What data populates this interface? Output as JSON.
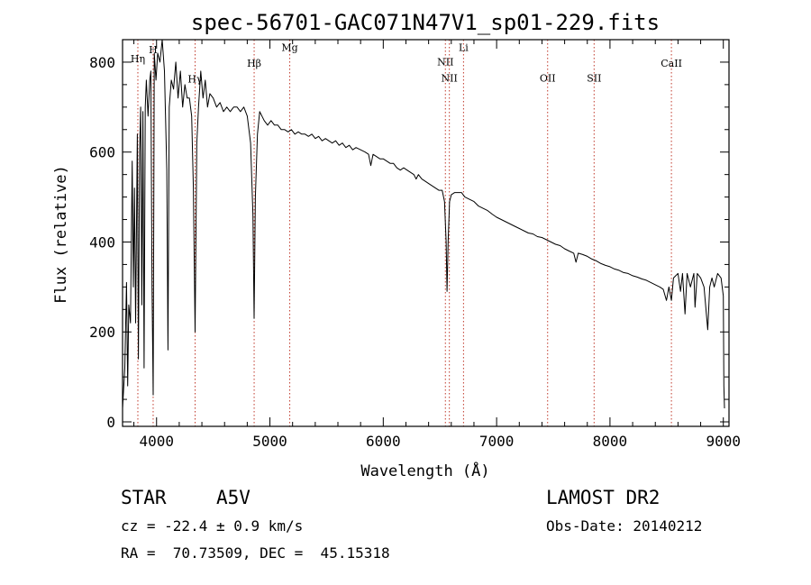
{
  "chart_data": {
    "type": "line",
    "title": "spec-56701-GAC071N47V1_sp01-229.fits",
    "xlabel": "Wavelength (Å)",
    "ylabel": "Flux (relative)",
    "xlim": [
      3700,
      9050
    ],
    "ylim": [
      -10,
      850
    ],
    "xticks": [
      4000,
      5000,
      6000,
      7000,
      8000,
      9000
    ],
    "yticks": [
      0,
      200,
      400,
      600,
      800
    ],
    "grid": false,
    "series": [
      {
        "points": [
          [
            3700,
            30
          ],
          [
            3720,
            120
          ],
          [
            3735,
            310
          ],
          [
            3745,
            80
          ],
          [
            3755,
            260
          ],
          [
            3770,
            220
          ],
          [
            3785,
            580
          ],
          [
            3795,
            300
          ],
          [
            3805,
            520
          ],
          [
            3815,
            220
          ],
          [
            3830,
            640
          ],
          [
            3840,
            140
          ],
          [
            3850,
            600
          ],
          [
            3860,
            700
          ],
          [
            3870,
            260
          ],
          [
            3880,
            690
          ],
          [
            3890,
            120
          ],
          [
            3900,
            700
          ],
          [
            3910,
            760
          ],
          [
            3925,
            680
          ],
          [
            3940,
            760
          ],
          [
            3950,
            780
          ],
          [
            3960,
            300
          ],
          [
            3970,
            60
          ],
          [
            3980,
            820
          ],
          [
            3995,
            760
          ],
          [
            4010,
            820
          ],
          [
            4030,
            800
          ],
          [
            4050,
            850
          ],
          [
            4070,
            780
          ],
          [
            4090,
            560
          ],
          [
            4101,
            160
          ],
          [
            4112,
            700
          ],
          [
            4130,
            760
          ],
          [
            4150,
            740
          ],
          [
            4170,
            800
          ],
          [
            4190,
            720
          ],
          [
            4210,
            780
          ],
          [
            4230,
            700
          ],
          [
            4250,
            750
          ],
          [
            4270,
            720
          ],
          [
            4290,
            720
          ],
          [
            4310,
            680
          ],
          [
            4325,
            520
          ],
          [
            4340,
            200
          ],
          [
            4355,
            620
          ],
          [
            4370,
            700
          ],
          [
            4390,
            780
          ],
          [
            4410,
            720
          ],
          [
            4430,
            760
          ],
          [
            4450,
            700
          ],
          [
            4470,
            730
          ],
          [
            4500,
            720
          ],
          [
            4530,
            700
          ],
          [
            4560,
            710
          ],
          [
            4590,
            690
          ],
          [
            4620,
            700
          ],
          [
            4650,
            690
          ],
          [
            4680,
            700
          ],
          [
            4710,
            700
          ],
          [
            4740,
            690
          ],
          [
            4770,
            700
          ],
          [
            4800,
            680
          ],
          [
            4830,
            620
          ],
          [
            4850,
            460
          ],
          [
            4861,
            230
          ],
          [
            4872,
            500
          ],
          [
            4890,
            640
          ],
          [
            4910,
            690
          ],
          [
            4930,
            680
          ],
          [
            4950,
            670
          ],
          [
            4980,
            660
          ],
          [
            5010,
            670
          ],
          [
            5040,
            660
          ],
          [
            5070,
            660
          ],
          [
            5100,
            650
          ],
          [
            5130,
            650
          ],
          [
            5160,
            645
          ],
          [
            5190,
            650
          ],
          [
            5220,
            640
          ],
          [
            5250,
            645
          ],
          [
            5280,
            640
          ],
          [
            5310,
            640
          ],
          [
            5340,
            635
          ],
          [
            5370,
            640
          ],
          [
            5400,
            630
          ],
          [
            5430,
            635
          ],
          [
            5460,
            625
          ],
          [
            5490,
            630
          ],
          [
            5520,
            625
          ],
          [
            5550,
            620
          ],
          [
            5580,
            625
          ],
          [
            5610,
            615
          ],
          [
            5640,
            620
          ],
          [
            5670,
            610
          ],
          [
            5700,
            615
          ],
          [
            5730,
            605
          ],
          [
            5760,
            610
          ],
          [
            5800,
            605
          ],
          [
            5840,
            600
          ],
          [
            5870,
            595
          ],
          [
            5890,
            570
          ],
          [
            5910,
            595
          ],
          [
            5940,
            590
          ],
          [
            5970,
            585
          ],
          [
            6000,
            585
          ],
          [
            6030,
            580
          ],
          [
            6060,
            575
          ],
          [
            6090,
            575
          ],
          [
            6120,
            565
          ],
          [
            6150,
            560
          ],
          [
            6180,
            565
          ],
          [
            6210,
            560
          ],
          [
            6240,
            555
          ],
          [
            6270,
            550
          ],
          [
            6290,
            540
          ],
          [
            6310,
            550
          ],
          [
            6340,
            540
          ],
          [
            6370,
            535
          ],
          [
            6400,
            530
          ],
          [
            6430,
            525
          ],
          [
            6460,
            520
          ],
          [
            6490,
            515
          ],
          [
            6520,
            515
          ],
          [
            6540,
            490
          ],
          [
            6555,
            400
          ],
          [
            6563,
            290
          ],
          [
            6572,
            400
          ],
          [
            6585,
            490
          ],
          [
            6600,
            505
          ],
          [
            6630,
            510
          ],
          [
            6660,
            510
          ],
          [
            6690,
            510
          ],
          [
            6720,
            500
          ],
          [
            6760,
            495
          ],
          [
            6800,
            490
          ],
          [
            6840,
            480
          ],
          [
            6880,
            475
          ],
          [
            6920,
            470
          ],
          [
            6960,
            462
          ],
          [
            7000,
            455
          ],
          [
            7040,
            450
          ],
          [
            7080,
            445
          ],
          [
            7120,
            440
          ],
          [
            7160,
            435
          ],
          [
            7200,
            430
          ],
          [
            7240,
            425
          ],
          [
            7280,
            420
          ],
          [
            7320,
            418
          ],
          [
            7360,
            412
          ],
          [
            7400,
            410
          ],
          [
            7440,
            405
          ],
          [
            7480,
            400
          ],
          [
            7520,
            395
          ],
          [
            7560,
            392
          ],
          [
            7600,
            385
          ],
          [
            7640,
            380
          ],
          [
            7680,
            375
          ],
          [
            7700,
            355
          ],
          [
            7720,
            375
          ],
          [
            7760,
            372
          ],
          [
            7800,
            368
          ],
          [
            7840,
            362
          ],
          [
            7880,
            358
          ],
          [
            7920,
            352
          ],
          [
            7960,
            348
          ],
          [
            8000,
            345
          ],
          [
            8040,
            340
          ],
          [
            8080,
            337
          ],
          [
            8120,
            332
          ],
          [
            8160,
            330
          ],
          [
            8200,
            325
          ],
          [
            8240,
            322
          ],
          [
            8280,
            318
          ],
          [
            8320,
            315
          ],
          [
            8360,
            310
          ],
          [
            8400,
            305
          ],
          [
            8440,
            300
          ],
          [
            8470,
            295
          ],
          [
            8498,
            270
          ],
          [
            8520,
            300
          ],
          [
            8542,
            270
          ],
          [
            8560,
            320
          ],
          [
            8600,
            330
          ],
          [
            8622,
            290
          ],
          [
            8640,
            330
          ],
          [
            8662,
            240
          ],
          [
            8680,
            330
          ],
          [
            8710,
            300
          ],
          [
            8740,
            330
          ],
          [
            8750,
            255
          ],
          [
            8770,
            330
          ],
          [
            8800,
            320
          ],
          [
            8830,
            300
          ],
          [
            8862,
            205
          ],
          [
            8880,
            300
          ],
          [
            8900,
            320
          ],
          [
            8920,
            300
          ],
          [
            8950,
            330
          ],
          [
            8980,
            320
          ],
          [
            9000,
            280
          ],
          [
            9005,
            80
          ],
          [
            9010,
            30
          ]
        ]
      }
    ],
    "lines": [
      {
        "label": "Hη",
        "x": 3835,
        "label_y": 800
      },
      {
        "label": "H",
        "x": 3970,
        "label_y": 820
      },
      {
        "label": "Hγ",
        "x": 4340,
        "label_y": 755
      },
      {
        "label": "Hβ",
        "x": 4861,
        "label_y": 790
      },
      {
        "label": "Mg",
        "x": 5175,
        "label_y": 825
      },
      {
        "label": "NII",
        "x": 6548,
        "label_y": 793
      },
      {
        "label": "NII",
        "x": 6583,
        "label_y": 757
      },
      {
        "label": "Li",
        "x": 6708,
        "label_y": 825
      },
      {
        "label": "OII",
        "x": 7450,
        "label_y": 757
      },
      {
        "label": "SII",
        "x": 7860,
        "label_y": 757
      },
      {
        "label": "CaII",
        "x": 8542,
        "label_y": 790
      }
    ]
  },
  "info": {
    "object": "STAR",
    "subclass": "A5V",
    "survey": "LAMOST DR2",
    "redshift": "cz = -22.4 ± 0.9 km/s",
    "obsdate": "Obs-Date: 20140212",
    "coords": "RA =  70.73509, DEC =  45.15318"
  },
  "colors": {
    "spectrum": "#000000",
    "line_marker": "#c0392b",
    "axes": "#000000"
  }
}
